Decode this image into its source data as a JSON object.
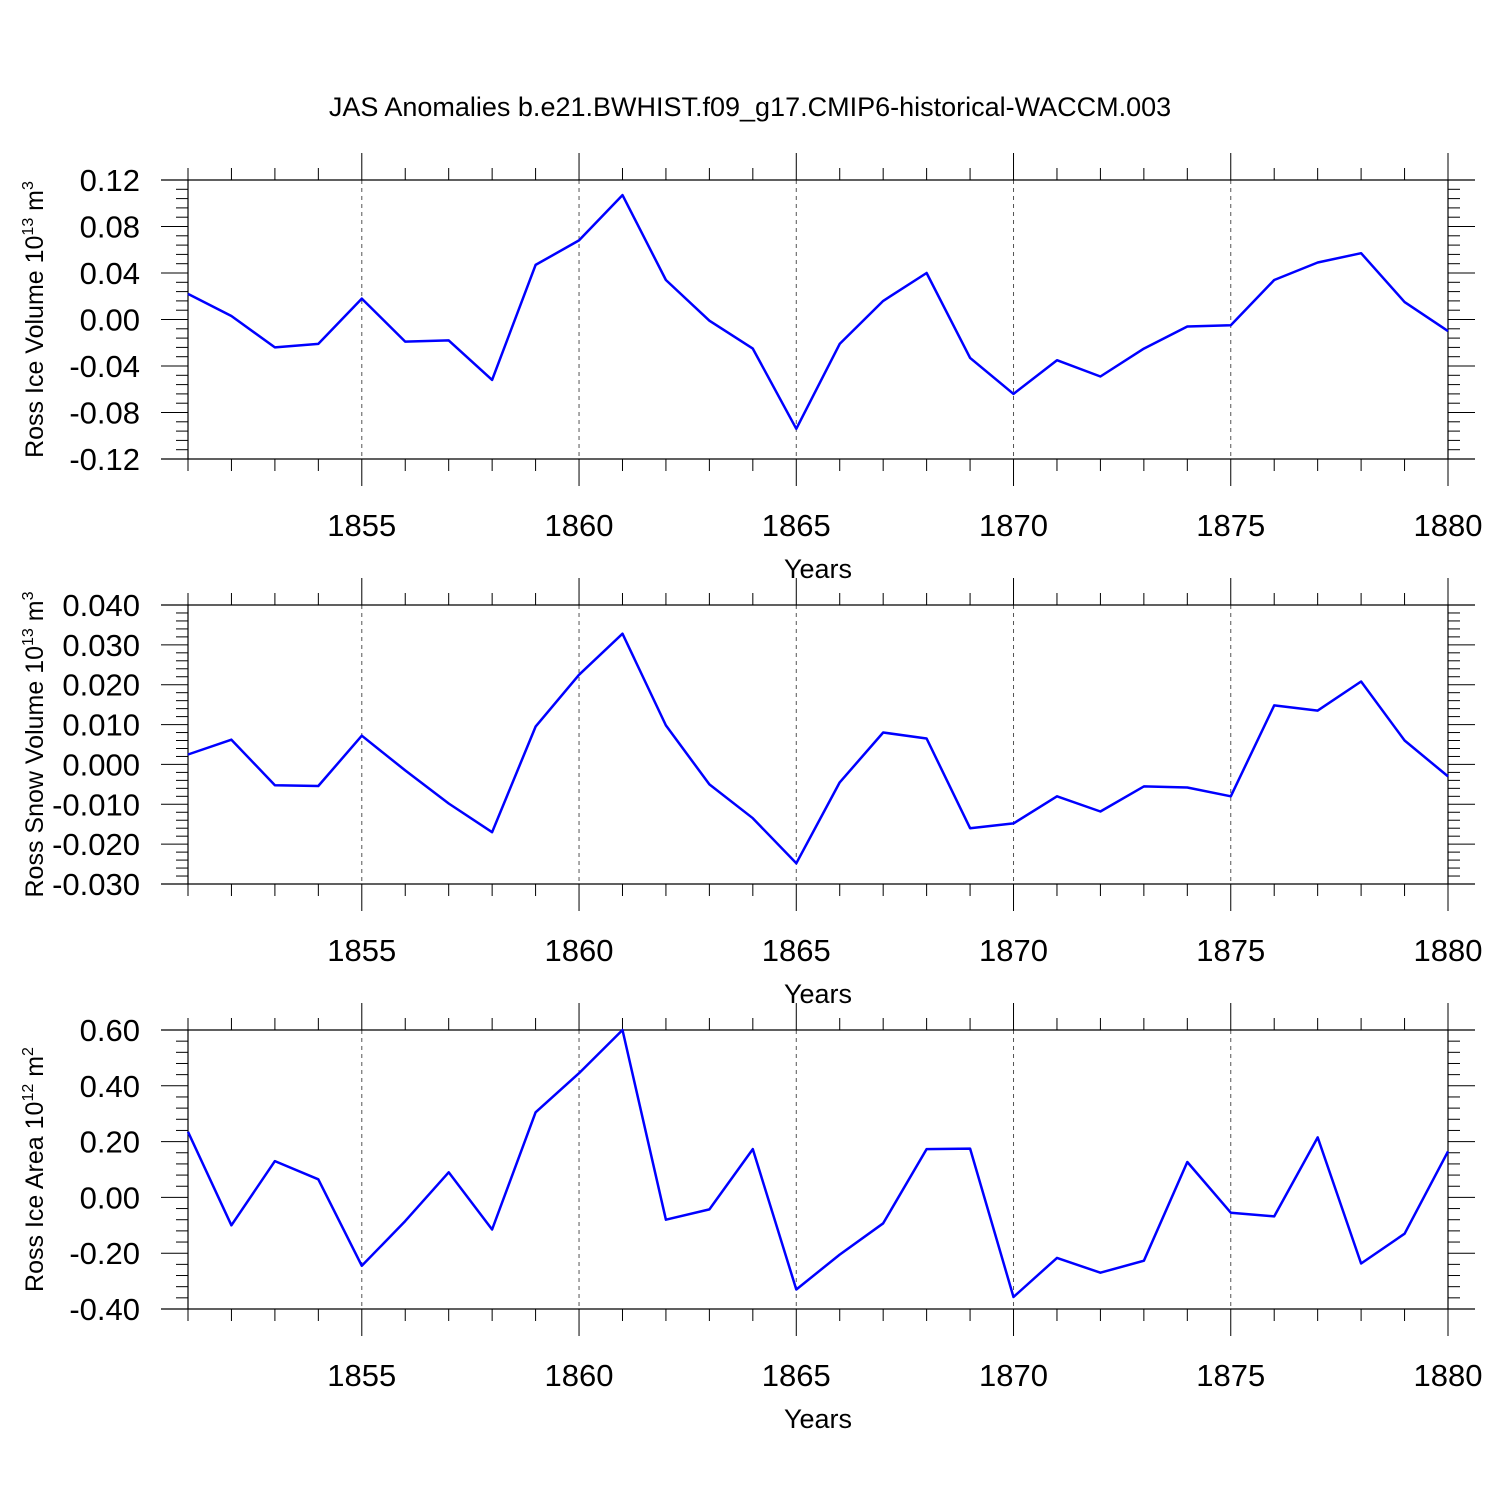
{
  "title": "JAS Anomalies b.e21.BWHIST.f09_g17.CMIP6-historical-WACCM.003",
  "line_color": "#0000ff",
  "chart_data": [
    {
      "type": "line",
      "ylabel": "Ross Ice Volume 10",
      "ylabel_exp": "13",
      "ylabel_unit": " m",
      "ylabel_unit_exp": "3",
      "xlabel": "Years",
      "xlim": [
        1851,
        1880
      ],
      "ylim": [
        -0.12,
        0.12
      ],
      "x_ticks": [
        1855,
        1860,
        1865,
        1870,
        1875,
        1880
      ],
      "x_tick_labels": [
        "1855",
        "1860",
        "1865",
        "1870",
        "1875",
        "1880"
      ],
      "y_ticks": [
        -0.12,
        -0.08,
        -0.04,
        0.0,
        0.04,
        0.08,
        0.12
      ],
      "y_tick_labels": [
        "-0.12",
        "-0.08",
        "-0.04",
        "0.00",
        "0.04",
        "0.08",
        "0.12"
      ],
      "x": [
        1851,
        1852,
        1853,
        1854,
        1855,
        1856,
        1857,
        1858,
        1859,
        1860,
        1861,
        1862,
        1863,
        1864,
        1865,
        1866,
        1867,
        1868,
        1869,
        1870,
        1871,
        1872,
        1873,
        1874,
        1875,
        1876,
        1877,
        1878,
        1879,
        1880
      ],
      "values": [
        0.022,
        0.003,
        -0.024,
        -0.021,
        0.018,
        -0.019,
        -0.018,
        -0.052,
        0.047,
        0.068,
        0.107,
        0.034,
        -0.001,
        -0.025,
        -0.094,
        -0.021,
        0.016,
        0.04,
        -0.033,
        -0.064,
        -0.035,
        -0.049,
        -0.025,
        -0.006,
        -0.005,
        0.034,
        0.049,
        0.057,
        0.015,
        -0.01
      ]
    },
    {
      "type": "line",
      "ylabel": "Ross Snow Volume 10",
      "ylabel_exp": "13",
      "ylabel_unit": " m",
      "ylabel_unit_exp": "3",
      "xlabel": "Years",
      "xlim": [
        1851,
        1880
      ],
      "ylim": [
        -0.03,
        0.04
      ],
      "x_ticks": [
        1855,
        1860,
        1865,
        1870,
        1875,
        1880
      ],
      "x_tick_labels": [
        "1855",
        "1860",
        "1865",
        "1870",
        "1875",
        "1880"
      ],
      "y_ticks": [
        -0.03,
        -0.02,
        -0.01,
        0.0,
        0.01,
        0.02,
        0.03,
        0.04
      ],
      "y_tick_labels": [
        "-0.030",
        "-0.020",
        "-0.010",
        "0.000",
        "0.010",
        "0.020",
        "0.030",
        "0.040"
      ],
      "x": [
        1851,
        1852,
        1853,
        1854,
        1855,
        1856,
        1857,
        1858,
        1859,
        1860,
        1861,
        1862,
        1863,
        1864,
        1865,
        1866,
        1867,
        1868,
        1869,
        1870,
        1871,
        1872,
        1873,
        1874,
        1875,
        1876,
        1877,
        1878,
        1879,
        1880
      ],
      "values": [
        0.0025,
        0.0062,
        -0.0052,
        -0.0054,
        0.0072,
        -0.0015,
        -0.0098,
        -0.017,
        0.0095,
        0.0225,
        0.0328,
        0.0098,
        -0.005,
        -0.0135,
        -0.0248,
        -0.0045,
        0.008,
        0.0065,
        -0.016,
        -0.0148,
        -0.008,
        -0.0118,
        -0.0055,
        -0.0058,
        -0.008,
        0.0148,
        0.0135,
        0.0208,
        0.006,
        -0.003
      ]
    },
    {
      "type": "line",
      "ylabel": "Ross Ice Area 10",
      "ylabel_exp": "12",
      "ylabel_unit": " m",
      "ylabel_unit_exp": "2",
      "xlabel": "Years",
      "xlim": [
        1851,
        1880
      ],
      "ylim": [
        -0.4,
        0.6
      ],
      "x_ticks": [
        1855,
        1860,
        1865,
        1870,
        1875,
        1880
      ],
      "x_tick_labels": [
        "1855",
        "1860",
        "1865",
        "1870",
        "1875",
        "1880"
      ],
      "y_ticks": [
        -0.4,
        -0.2,
        0.0,
        0.2,
        0.4,
        0.6
      ],
      "y_tick_labels": [
        "-0.40",
        "-0.20",
        "0.00",
        "0.20",
        "0.40",
        "0.60"
      ],
      "x": [
        1851,
        1852,
        1853,
        1854,
        1855,
        1856,
        1857,
        1858,
        1859,
        1860,
        1861,
        1862,
        1863,
        1864,
        1865,
        1866,
        1867,
        1868,
        1869,
        1870,
        1871,
        1872,
        1873,
        1874,
        1875,
        1876,
        1877,
        1878,
        1879,
        1880
      ],
      "values": [
        0.235,
        -0.1,
        0.13,
        0.065,
        -0.245,
        -0.085,
        0.09,
        -0.115,
        0.305,
        0.445,
        0.6,
        -0.08,
        -0.043,
        0.173,
        -0.33,
        -0.205,
        -0.093,
        0.173,
        0.175,
        -0.357,
        -0.217,
        -0.27,
        -0.227,
        0.127,
        -0.055,
        -0.068,
        0.215,
        -0.237,
        -0.13,
        0.165
      ]
    }
  ]
}
